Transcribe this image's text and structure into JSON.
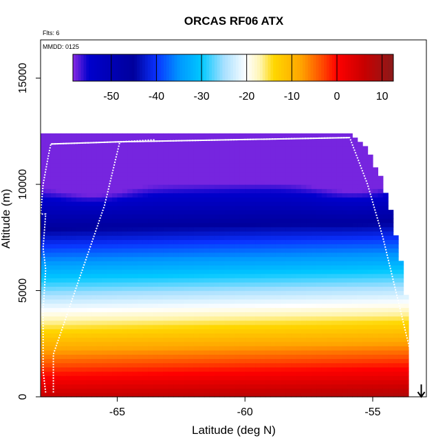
{
  "chart_data": {
    "type": "heatmap",
    "title": "ORCAS RF06 ATX",
    "flights_note": "Flts: 6",
    "date_note": "MMDD: 0125",
    "xlabel": "Latitude (deg N)",
    "ylabel": "Altitude (m)",
    "xlim": [
      -68,
      -52.9
    ],
    "ylim": [
      0,
      16800
    ],
    "x_ticks": [
      -65,
      -60,
      -55
    ],
    "x_tick_labels": [
      "-65",
      "-60",
      "-55"
    ],
    "y_ticks": [
      0,
      5000,
      10000,
      15000
    ],
    "y_tick_labels": [
      "0",
      "5000",
      "10000",
      "15000"
    ],
    "colorbar": {
      "range": [
        -58.5,
        12.5
      ],
      "ticks": [
        -50,
        -40,
        -30,
        -20,
        -10,
        0,
        10
      ],
      "tick_labels": [
        "-50",
        "-40",
        "-30",
        "-20",
        "-10",
        "0",
        "10"
      ],
      "colors": [
        "#8a2be2",
        "#0000cd",
        "#0000b4",
        "#00009c",
        "#0a32ff",
        "#0096ff",
        "#00c8ff",
        "#a8e0ff",
        "#ffffff",
        "#fff5b0",
        "#ffd700",
        "#ffa500",
        "#ff4500",
        "#ff0000",
        "#c80000",
        "#8b1a1a"
      ],
      "stops": [
        -58.5,
        -55,
        -50,
        -45,
        -40,
        -35,
        -30,
        -25,
        -20,
        -17,
        -14,
        -8,
        -3,
        0,
        6,
        12.5
      ]
    },
    "field": {
      "x_range": [
        -68,
        -53.2
      ],
      "lat_step": 0.2,
      "alt_step": 200,
      "surface_temp": 7,
      "lapse_rate_per_km": -6.5,
      "tropopause_m": 10500,
      "top_boundary": [
        {
          "lat": -68,
          "alt": 12300
        },
        {
          "lat": -55.8,
          "alt": 12300
        },
        {
          "lat": -55.2,
          "alt": 11500
        },
        {
          "lat": -54.7,
          "alt": 10300
        },
        {
          "lat": -54.3,
          "alt": 8700
        },
        {
          "lat": -54.0,
          "alt": 7000
        },
        {
          "lat": -53.8,
          "alt": 5500
        },
        {
          "lat": -53.7,
          "alt": 4800
        },
        {
          "lat": -53.5,
          "alt": 3800
        },
        {
          "lat": -53.5,
          "alt": 400
        }
      ],
      "cold_core": {
        "lat": -55.8,
        "alt": 10200,
        "amp": -4
      }
    },
    "flight_track": [
      {
        "lat": -67.8,
        "alt": 200
      },
      {
        "lat": -67.9,
        "alt": 1200
      },
      {
        "lat": -67.9,
        "alt": 4000
      },
      {
        "lat": -67.8,
        "alt": 6000
      },
      {
        "lat": -67.9,
        "alt": 7000
      },
      {
        "lat": -67.8,
        "alt": 8600
      },
      {
        "lat": -68.0,
        "alt": 8600
      },
      {
        "lat": -67.9,
        "alt": 10000
      },
      {
        "lat": -67.7,
        "alt": 11300
      },
      {
        "lat": -67.6,
        "alt": 11900
      },
      {
        "lat": -65.0,
        "alt": 12000
      },
      {
        "lat": -55.9,
        "alt": 12200
      },
      {
        "lat": -55.2,
        "alt": 10000
      },
      {
        "lat": -54.6,
        "alt": 7500
      },
      {
        "lat": -54.1,
        "alt": 5000
      },
      {
        "lat": -53.6,
        "alt": 2500
      },
      {
        "lat": -53.2,
        "alt": 300
      }
    ],
    "flight_track_2": [
      {
        "lat": -67.5,
        "alt": 200
      },
      {
        "lat": -67.5,
        "alt": 2000
      },
      {
        "lat": -66.5,
        "alt": 5500
      },
      {
        "lat": -65.5,
        "alt": 9000
      },
      {
        "lat": -64.9,
        "alt": 12000
      },
      {
        "lat": -63.5,
        "alt": 12100
      }
    ],
    "arrow_end": {
      "lat": -53.1,
      "alt": 0
    }
  }
}
